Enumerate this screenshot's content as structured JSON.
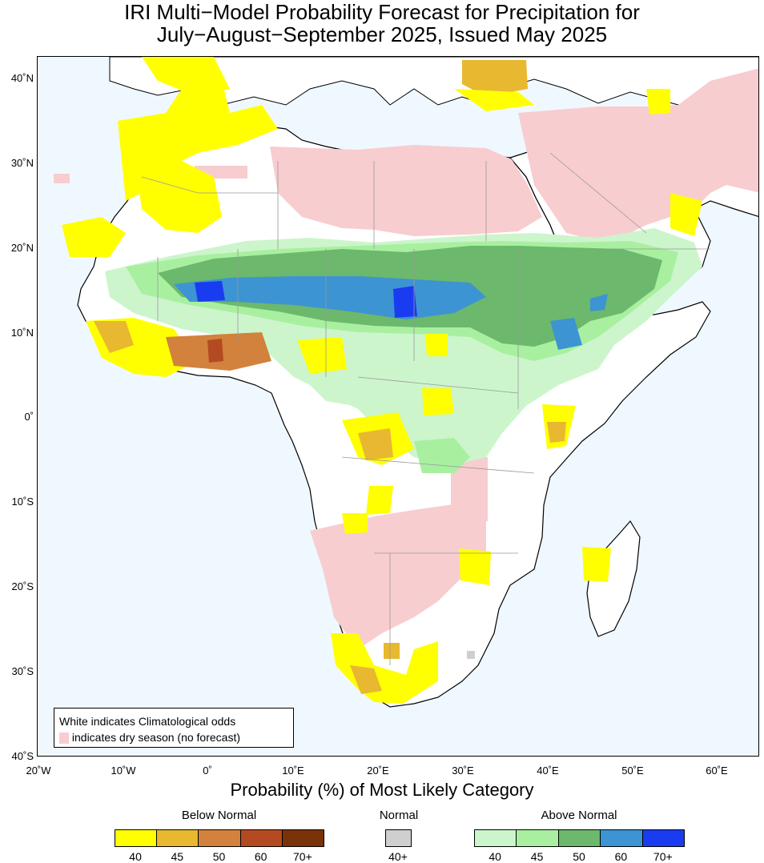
{
  "title_line1": "IRI Multi−Model Probability Forecast for Precipitation for",
  "title_line2": "July−August−September 2025, Issued May 2025",
  "lat_labels": [
    "40˚N",
    "30˚N",
    "20˚N",
    "10˚N",
    "0˚",
    "10˚S",
    "20˚S",
    "30˚S",
    "40˚S"
  ],
  "lon_labels": [
    "20˚W",
    "10˚W",
    "0˚",
    "10˚E",
    "20˚E",
    "30˚E",
    "40˚E",
    "50˚E",
    "60˚E"
  ],
  "legend_box": {
    "line1": "White indicates Climatological odds",
    "line2": "indicates dry season (no forecast)"
  },
  "colorbar_title": "Probability (%) of Most Likely Category",
  "colorbar_groups": {
    "below": {
      "title": "Below Normal",
      "colors": [
        "#ffff00",
        "#e8b830",
        "#d2823c",
        "#b44a22",
        "#7a3308"
      ],
      "ticks": [
        "40",
        "45",
        "50",
        "60",
        "70+"
      ]
    },
    "normal": {
      "title": "Normal",
      "colors": [
        "#cfcfcf"
      ],
      "ticks": [
        "40+"
      ]
    },
    "above": {
      "title": "Above Normal",
      "colors": [
        "#ccf5cc",
        "#a8f0a0",
        "#6cb86c",
        "#3c94d2",
        "#1a3cf0"
      ],
      "ticks": [
        "40",
        "45",
        "50",
        "60",
        "70+"
      ]
    }
  },
  "colors": {
    "ocean": "#f0f8ff",
    "land": "#ffffff",
    "dry_season": "#f7cdd0",
    "coast": "#000000",
    "borders": "#999999"
  }
}
